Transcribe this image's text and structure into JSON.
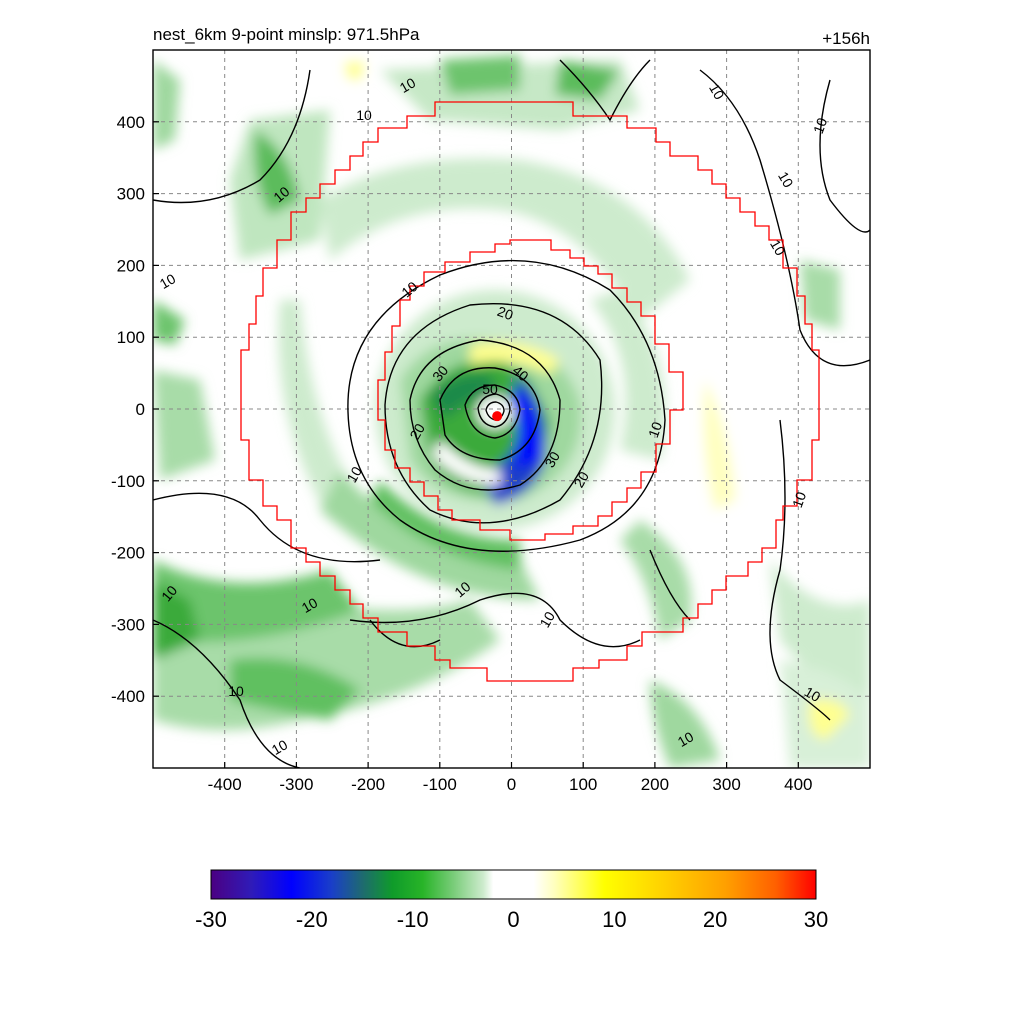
{
  "chart_data": {
    "type": "heatmap",
    "title": "nest_6km  9-point minslp: 971.5hPa",
    "time_label": "+156h",
    "xlim": [
      -500,
      500
    ],
    "ylim": [
      -500,
      500
    ],
    "x_ticks": [
      -400,
      -300,
      -200,
      -100,
      0,
      100,
      200,
      300,
      400
    ],
    "y_ticks": [
      400,
      300,
      200,
      100,
      0,
      -100,
      -200,
      -300,
      -400
    ],
    "grid": true,
    "colorbar": {
      "min": -30,
      "max": 30,
      "ticks": [
        -30,
        -20,
        -10,
        0,
        10,
        20,
        30
      ],
      "stops": [
        {
          "v": -30,
          "c": "#4b0082"
        },
        {
          "v": -26,
          "c": "#2f1bb8"
        },
        {
          "v": -22,
          "c": "#0000ff"
        },
        {
          "v": -18,
          "c": "#1a3fc8"
        },
        {
          "v": -15,
          "c": "#1e6a70"
        },
        {
          "v": -12,
          "c": "#0f9b2a"
        },
        {
          "v": -9,
          "c": "#28b428"
        },
        {
          "v": -6,
          "c": "#78cc78"
        },
        {
          "v": -3,
          "c": "#cdebcd"
        },
        {
          "v": -2,
          "c": "#ffffff"
        },
        {
          "v": 2,
          "c": "#ffffff"
        },
        {
          "v": 4,
          "c": "#ffffc0"
        },
        {
          "v": 9,
          "c": "#ffff00"
        },
        {
          "v": 15,
          "c": "#ffd000"
        },
        {
          "v": 21,
          "c": "#ffa000"
        },
        {
          "v": 26,
          "c": "#ff6000"
        },
        {
          "v": 30,
          "c": "#ff0000"
        }
      ]
    },
    "storm_center": {
      "x": -20,
      "y": -10
    },
    "contour_labels": [
      "10",
      "20",
      "30",
      "40",
      "50"
    ]
  }
}
